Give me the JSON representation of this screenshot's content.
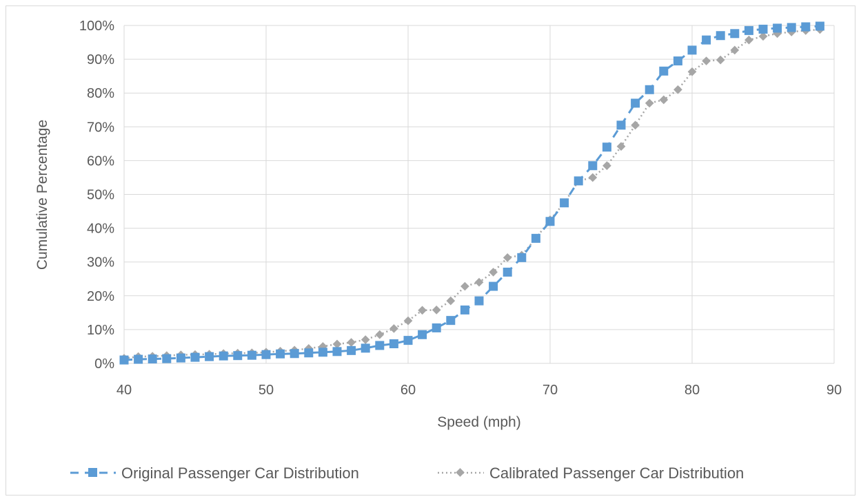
{
  "chart_data": {
    "type": "line",
    "title": "",
    "xlabel": "Speed (mph)",
    "ylabel": "Cumulative Percentage",
    "xlim": [
      40,
      90
    ],
    "ylim": [
      0,
      100
    ],
    "x_ticks": [
      "40",
      "50",
      "60",
      "70",
      "80",
      "90"
    ],
    "y_ticks": [
      "0%",
      "10%",
      "20%",
      "30%",
      "40%",
      "50%",
      "60%",
      "70%",
      "80%",
      "90%",
      "100%"
    ],
    "grid": true,
    "legend_position": "bottom",
    "series": [
      {
        "name": "Original Passenger Car Distribution",
        "color": "#5b9bd5",
        "line_style": "dashed",
        "marker": "square",
        "x": [
          40,
          41,
          42,
          43,
          44,
          45,
          46,
          47,
          48,
          49,
          50,
          51,
          52,
          53,
          54,
          55,
          56,
          57,
          58,
          59,
          60,
          61,
          62,
          63,
          64,
          65,
          66,
          67,
          68,
          69,
          70,
          71,
          72,
          73,
          74,
          75,
          76,
          77,
          78,
          79,
          80,
          81,
          82,
          83,
          84,
          85,
          86,
          87,
          88,
          89
        ],
        "y": [
          1,
          1.2,
          1.3,
          1.4,
          1.6,
          1.8,
          2,
          2.2,
          2.3,
          2.4,
          2.6,
          2.8,
          2.9,
          3.1,
          3.3,
          3.5,
          3.8,
          4.5,
          5.3,
          5.8,
          6.8,
          8.5,
          10.5,
          12.7,
          15.8,
          18.5,
          22.8,
          27,
          31.3,
          37,
          42,
          47.5,
          54,
          58.5,
          64,
          70.5,
          77,
          81,
          86.5,
          89.5,
          92.7,
          95.7,
          97,
          97.6,
          98.5,
          98.9,
          99.2,
          99.4,
          99.6,
          99.8
        ]
      },
      {
        "name": "Calibrated Passenger Car Distribution",
        "color": "#a6a6a6",
        "line_style": "dotted",
        "marker": "diamond",
        "x": [
          40,
          41,
          42,
          43,
          44,
          45,
          46,
          47,
          48,
          49,
          50,
          51,
          52,
          53,
          54,
          55,
          56,
          57,
          58,
          59,
          60,
          61,
          62,
          63,
          64,
          65,
          66,
          67,
          68,
          69,
          70,
          71,
          72,
          73,
          74,
          75,
          76,
          77,
          78,
          79,
          80,
          81,
          82,
          83,
          84,
          85,
          86,
          87,
          88,
          89
        ],
        "y": [
          1.5,
          2,
          2.1,
          2.3,
          2.5,
          2.6,
          2.7,
          2.9,
          3,
          3.1,
          3.3,
          3.6,
          3.9,
          4.4,
          5,
          5.7,
          6.2,
          7,
          8.5,
          10.3,
          12.6,
          15.7,
          15.8,
          18.5,
          22.8,
          24,
          27,
          31.3,
          32,
          37,
          42.5,
          47.5,
          54,
          55,
          58.5,
          64.2,
          70.5,
          77,
          78,
          81,
          86.3,
          89.5,
          89.8,
          92.7,
          95.7,
          96.8,
          97.6,
          98.1,
          98.5,
          98.8
        ]
      }
    ]
  }
}
